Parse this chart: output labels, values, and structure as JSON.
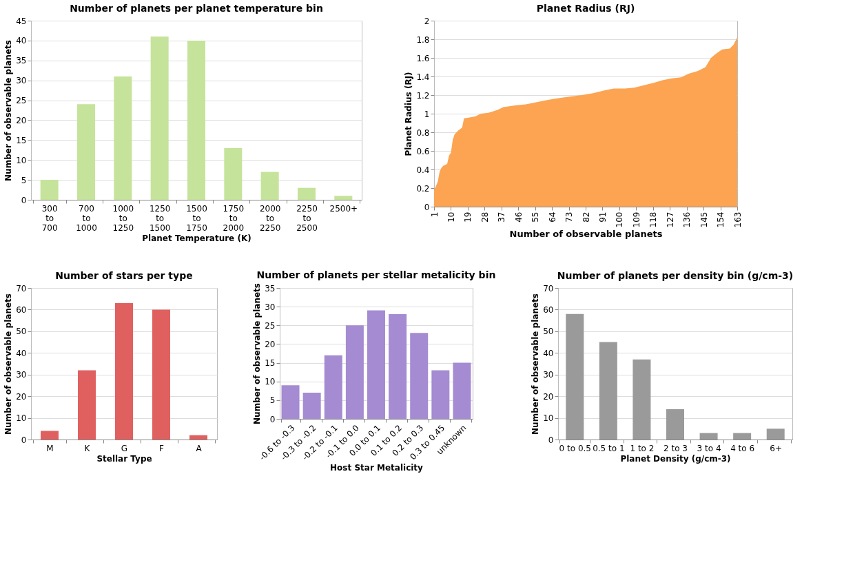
{
  "chart_data": [
    {
      "type": "bar",
      "title": "Number of planets per planet temperature bin",
      "xlabel": "Planet Temperature (K)",
      "ylabel": "Number of observable planets",
      "categories": [
        "300 to 700",
        "700 to 1000",
        "1000 to 1250",
        "1250 to 1500",
        "1500 to 1750",
        "1750 to 2000",
        "2000 to 2250",
        "2250 to 2500",
        "2500+"
      ],
      "values": [
        5,
        24,
        31,
        41,
        40,
        13,
        7,
        3,
        1
      ],
      "color": "#c5e39a",
      "ylim": [
        0,
        45
      ],
      "yticks": [
        0,
        5,
        10,
        15,
        20,
        25,
        30,
        35,
        40,
        45
      ],
      "grid": "y"
    },
    {
      "type": "area",
      "title": "Planet Radius (RJ)",
      "xlabel": "Number of observable planets",
      "ylabel": "Planet Radius (RJ)",
      "x": [
        1,
        2,
        3,
        4,
        5,
        6,
        8,
        9,
        10,
        11,
        12,
        14,
        16,
        17,
        20,
        23,
        26,
        30,
        35,
        38,
        45,
        50,
        55,
        60,
        65,
        72,
        80,
        86,
        92,
        97,
        103,
        108,
        112,
        118,
        123,
        128,
        133,
        137,
        142,
        146,
        149,
        152,
        155,
        159,
        161,
        163
      ],
      "values": [
        0.18,
        0.22,
        0.27,
        0.38,
        0.42,
        0.44,
        0.46,
        0.55,
        0.58,
        0.72,
        0.78,
        0.82,
        0.85,
        0.95,
        0.96,
        0.97,
        1.0,
        1.01,
        1.04,
        1.07,
        1.09,
        1.1,
        1.12,
        1.14,
        1.16,
        1.18,
        1.2,
        1.22,
        1.25,
        1.27,
        1.27,
        1.28,
        1.3,
        1.33,
        1.36,
        1.38,
        1.39,
        1.43,
        1.46,
        1.5,
        1.6,
        1.65,
        1.69,
        1.7,
        1.74,
        1.82
      ],
      "color": "#fca452",
      "xlim": [
        1,
        163
      ],
      "xticks": [
        1,
        10,
        19,
        28,
        37,
        46,
        55,
        64,
        73,
        82,
        91,
        100,
        109,
        118,
        127,
        136,
        145,
        154,
        163
      ],
      "ylim": [
        0,
        2
      ],
      "yticks": [
        0,
        0.2,
        0.4,
        0.6,
        0.8,
        1,
        1.2,
        1.4,
        1.6,
        1.8,
        2
      ],
      "grid": "y"
    },
    {
      "type": "bar",
      "title": "Number of stars per type",
      "xlabel": "Stellar Type",
      "ylabel": "Number of observable planets",
      "categories": [
        "M",
        "K",
        "G",
        "F",
        "A"
      ],
      "values": [
        4,
        32,
        63,
        60,
        2
      ],
      "color": "#e06060",
      "ylim": [
        0,
        70
      ],
      "yticks": [
        0,
        10,
        20,
        30,
        40,
        50,
        60,
        70
      ],
      "grid": "y"
    },
    {
      "type": "bar",
      "title": "Number of planets per stellar metalicity bin",
      "xlabel": "Host Star Metalicity",
      "ylabel": "Number of observable planets",
      "categories": [
        "-0.6 to -0.3",
        "-0.3 to -0.2",
        "-0.2 to -0.1",
        "-0.1 to 0.0",
        "0.0 to 0.1",
        "0.1 to 0.2",
        "0.2 to 0.3",
        "0.3 to 0.45",
        "unknown"
      ],
      "values": [
        9,
        7,
        17,
        25,
        29,
        28,
        23,
        13,
        15
      ],
      "color": "#a58bd1",
      "ylim": [
        0,
        35
      ],
      "yticks": [
        0,
        5,
        10,
        15,
        20,
        25,
        30,
        35
      ],
      "grid": "y"
    },
    {
      "type": "bar",
      "title": "Number of planets per density bin (g/cm-3)",
      "xlabel": "Planet Density (g/cm-3)",
      "ylabel": "Number of observable planets",
      "categories": [
        "0 to 0.5",
        "0.5 to 1",
        "1 to 2",
        "2 to 3",
        "3 to 4",
        "4 to 6",
        "6+"
      ],
      "values": [
        58,
        45,
        37,
        14,
        3,
        3,
        5
      ],
      "color": "#9a9a9a",
      "ylim": [
        0,
        70
      ],
      "yticks": [
        0,
        10,
        20,
        30,
        40,
        50,
        60,
        70
      ],
      "grid": "y"
    }
  ]
}
